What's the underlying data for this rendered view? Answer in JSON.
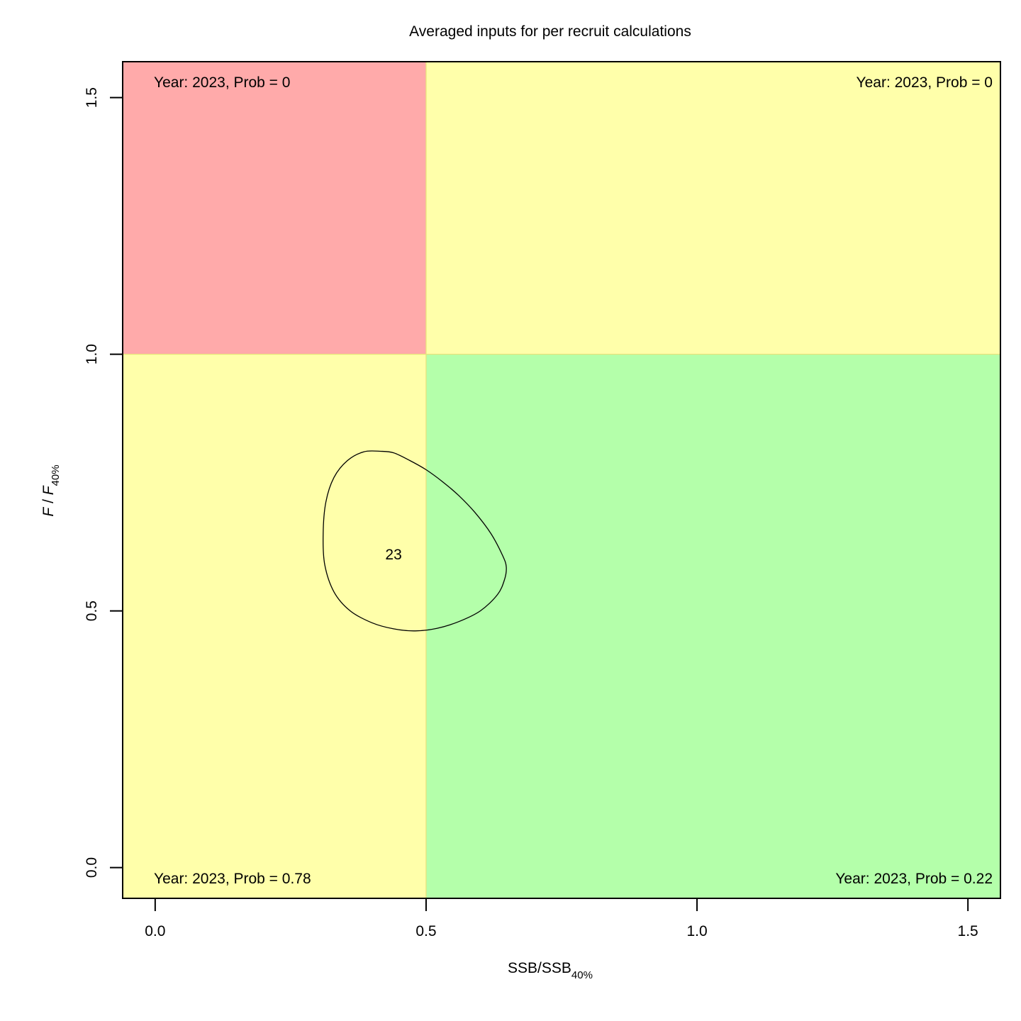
{
  "chart_data": {
    "type": "scatter",
    "title": "Averaged inputs for per recruit calculations",
    "xlabel": {
      "main": "SSB/SSB",
      "sub": "40%"
    },
    "ylabel": {
      "main": "F",
      "sep": " / ",
      "main2": "F",
      "sub": "40%"
    },
    "xlim": [
      -0.06,
      1.56
    ],
    "ylim": [
      -0.06,
      1.57
    ],
    "x_ticks": [
      0.0,
      0.5,
      1.0,
      1.5
    ],
    "x_tick_labels": [
      "0.0",
      "0.5",
      "1.0",
      "1.5"
    ],
    "y_ticks": [
      0.0,
      0.5,
      1.0,
      1.5
    ],
    "y_tick_labels": [
      "0.0",
      "0.5",
      "1.0",
      "1.5"
    ],
    "grid": false,
    "reference_lines": {
      "ssb_ratio": 0.5,
      "f_ratio": 1.0
    },
    "quadrants": [
      {
        "name": "top-left",
        "color": "#FFAAAA",
        "label": "Year: 2023, Prob = 0",
        "corner": "top-left"
      },
      {
        "name": "top-right",
        "color": "#FFFFAA",
        "label": "Year: 2023, Prob = 0",
        "corner": "top-right"
      },
      {
        "name": "bottom-left",
        "color": "#FFFFAA",
        "label": "Year: 2023, Prob = 0.78",
        "corner": "bottom-left"
      },
      {
        "name": "bottom-right",
        "color": "#B4FFAA",
        "label": "Year: 2023, Prob = 0.22",
        "corner": "bottom-right"
      }
    ],
    "point": {
      "label": "23",
      "x": 0.44,
      "y": 0.61
    },
    "contour": {
      "points": [
        [
          0.416,
          0.811
        ],
        [
          0.44,
          0.808
        ],
        [
          0.47,
          0.793
        ],
        [
          0.5,
          0.775
        ],
        [
          0.53,
          0.752
        ],
        [
          0.56,
          0.725
        ],
        [
          0.59,
          0.692
        ],
        [
          0.62,
          0.65
        ],
        [
          0.642,
          0.606
        ],
        [
          0.648,
          0.585
        ],
        [
          0.645,
          0.562
        ],
        [
          0.632,
          0.532
        ],
        [
          0.6,
          0.5
        ],
        [
          0.56,
          0.479
        ],
        [
          0.52,
          0.466
        ],
        [
          0.48,
          0.461
        ],
        [
          0.44,
          0.465
        ],
        [
          0.4,
          0.477
        ],
        [
          0.36,
          0.5
        ],
        [
          0.33,
          0.537
        ],
        [
          0.313,
          0.59
        ],
        [
          0.31,
          0.65
        ],
        [
          0.315,
          0.712
        ],
        [
          0.33,
          0.76
        ],
        [
          0.355,
          0.793
        ],
        [
          0.385,
          0.81
        ]
      ]
    }
  }
}
